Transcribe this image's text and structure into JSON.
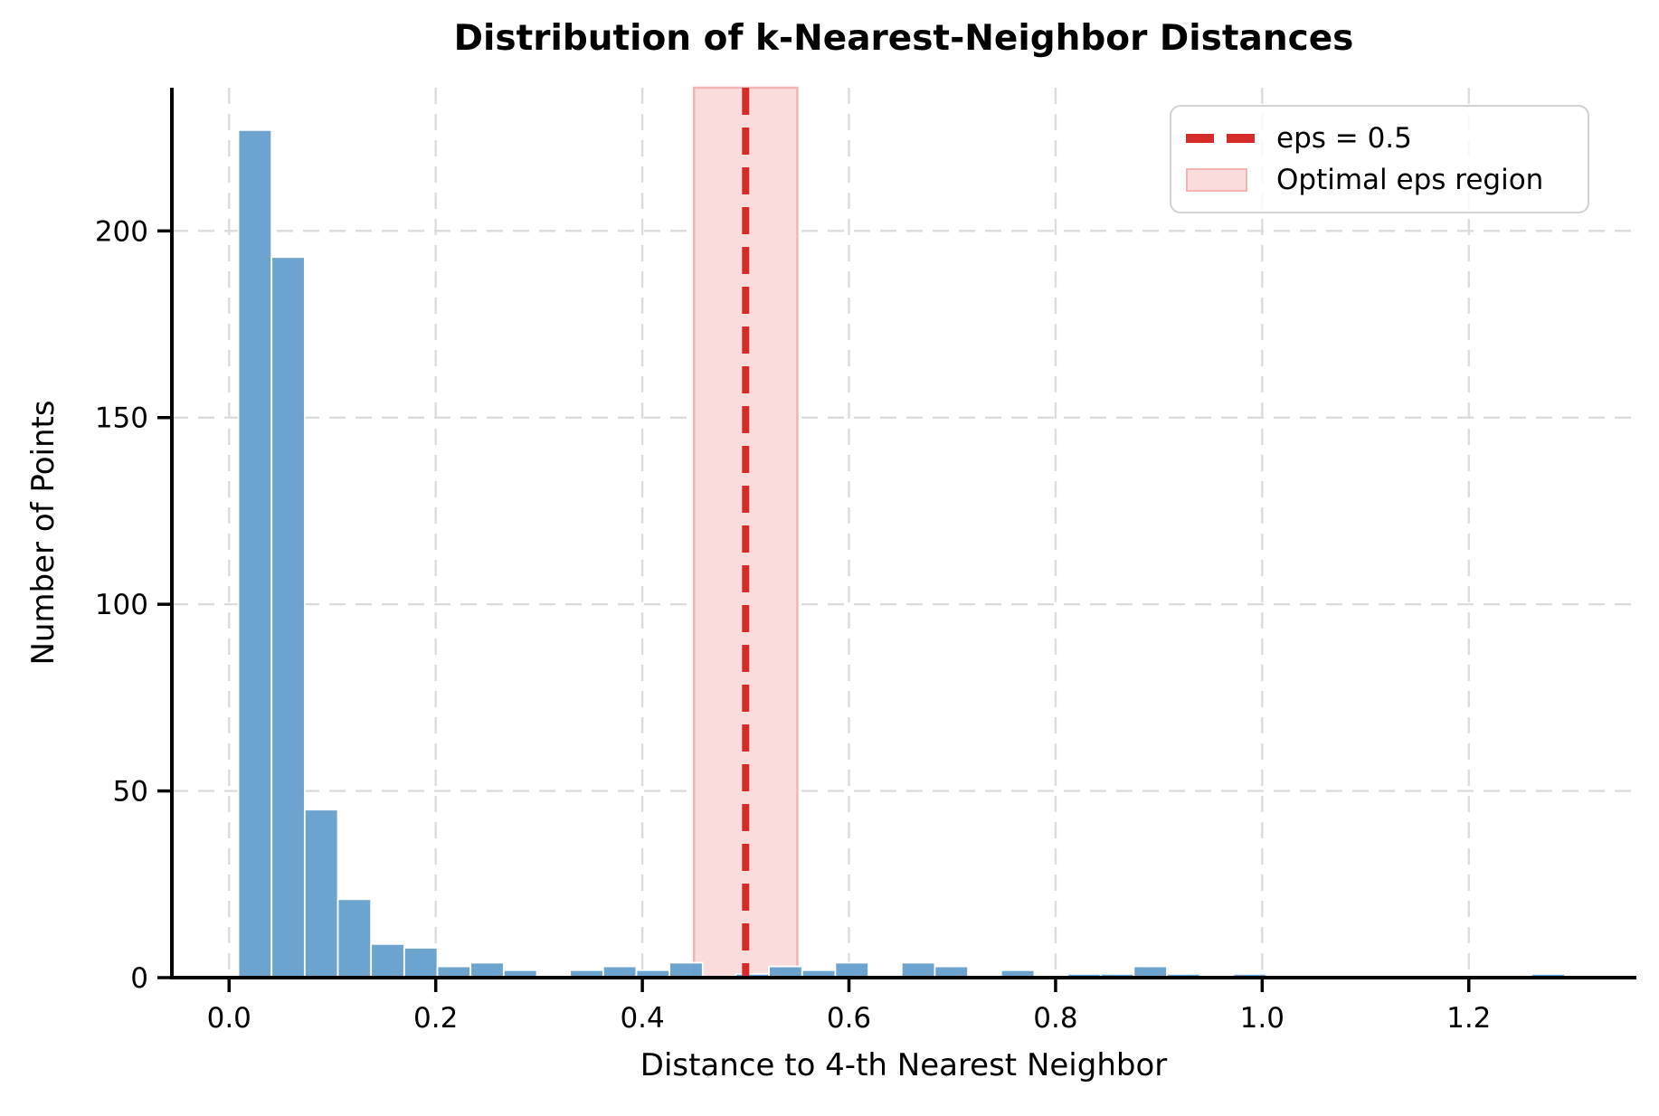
{
  "chart_data": {
    "type": "bar",
    "title": "Distribution of k-Nearest-Neighbor Distances",
    "xlabel": "Distance to 4-th Nearest Neighbor",
    "ylabel": "Number of Points",
    "histogram": {
      "bin_start": 0.009,
      "bin_width": 0.0321,
      "counts": [
        227,
        193,
        45,
        21,
        9,
        8,
        3,
        4,
        2,
        0,
        2,
        3,
        2,
        4,
        0,
        1,
        3,
        2,
        4,
        0,
        4,
        3,
        0,
        2,
        0,
        1,
        1,
        3,
        1,
        0,
        1,
        0,
        0,
        0,
        0,
        0,
        0,
        0,
        0,
        1
      ]
    },
    "xticks": [
      {
        "v": 0.0,
        "label": "0.0"
      },
      {
        "v": 0.2,
        "label": "0.2"
      },
      {
        "v": 0.4,
        "label": "0.4"
      },
      {
        "v": 0.6,
        "label": "0.6"
      },
      {
        "v": 0.8,
        "label": "0.8"
      },
      {
        "v": 1.0,
        "label": "1.0"
      },
      {
        "v": 1.2,
        "label": "1.2"
      }
    ],
    "yticks": [
      {
        "v": 0,
        "label": "0"
      },
      {
        "v": 50,
        "label": "50"
      },
      {
        "v": 100,
        "label": "100"
      },
      {
        "v": 150,
        "label": "150"
      },
      {
        "v": 200,
        "label": "200"
      }
    ],
    "xlim": [
      -0.0554,
      1.3622
    ],
    "ylim": [
      0,
      238.35
    ],
    "grid": true,
    "bar_color": "#649ecc",
    "bar_edge_color": "#ffffff",
    "annotations": {
      "eps_line": {
        "x": 0.5,
        "color": "#d62b2b"
      },
      "eps_region": {
        "x0": 0.45,
        "x1": 0.55,
        "fill": "#fbdcdc",
        "edge": "#f2b5b5"
      }
    },
    "legend": {
      "position": "upper right",
      "items": [
        {
          "type": "dashed-line",
          "label": "eps = 0.5",
          "color": "#d62b2b"
        },
        {
          "type": "filled-box",
          "label": "Optimal eps region",
          "fill": "#fbdcdc",
          "edge": "#f2b5b5"
        }
      ]
    }
  }
}
